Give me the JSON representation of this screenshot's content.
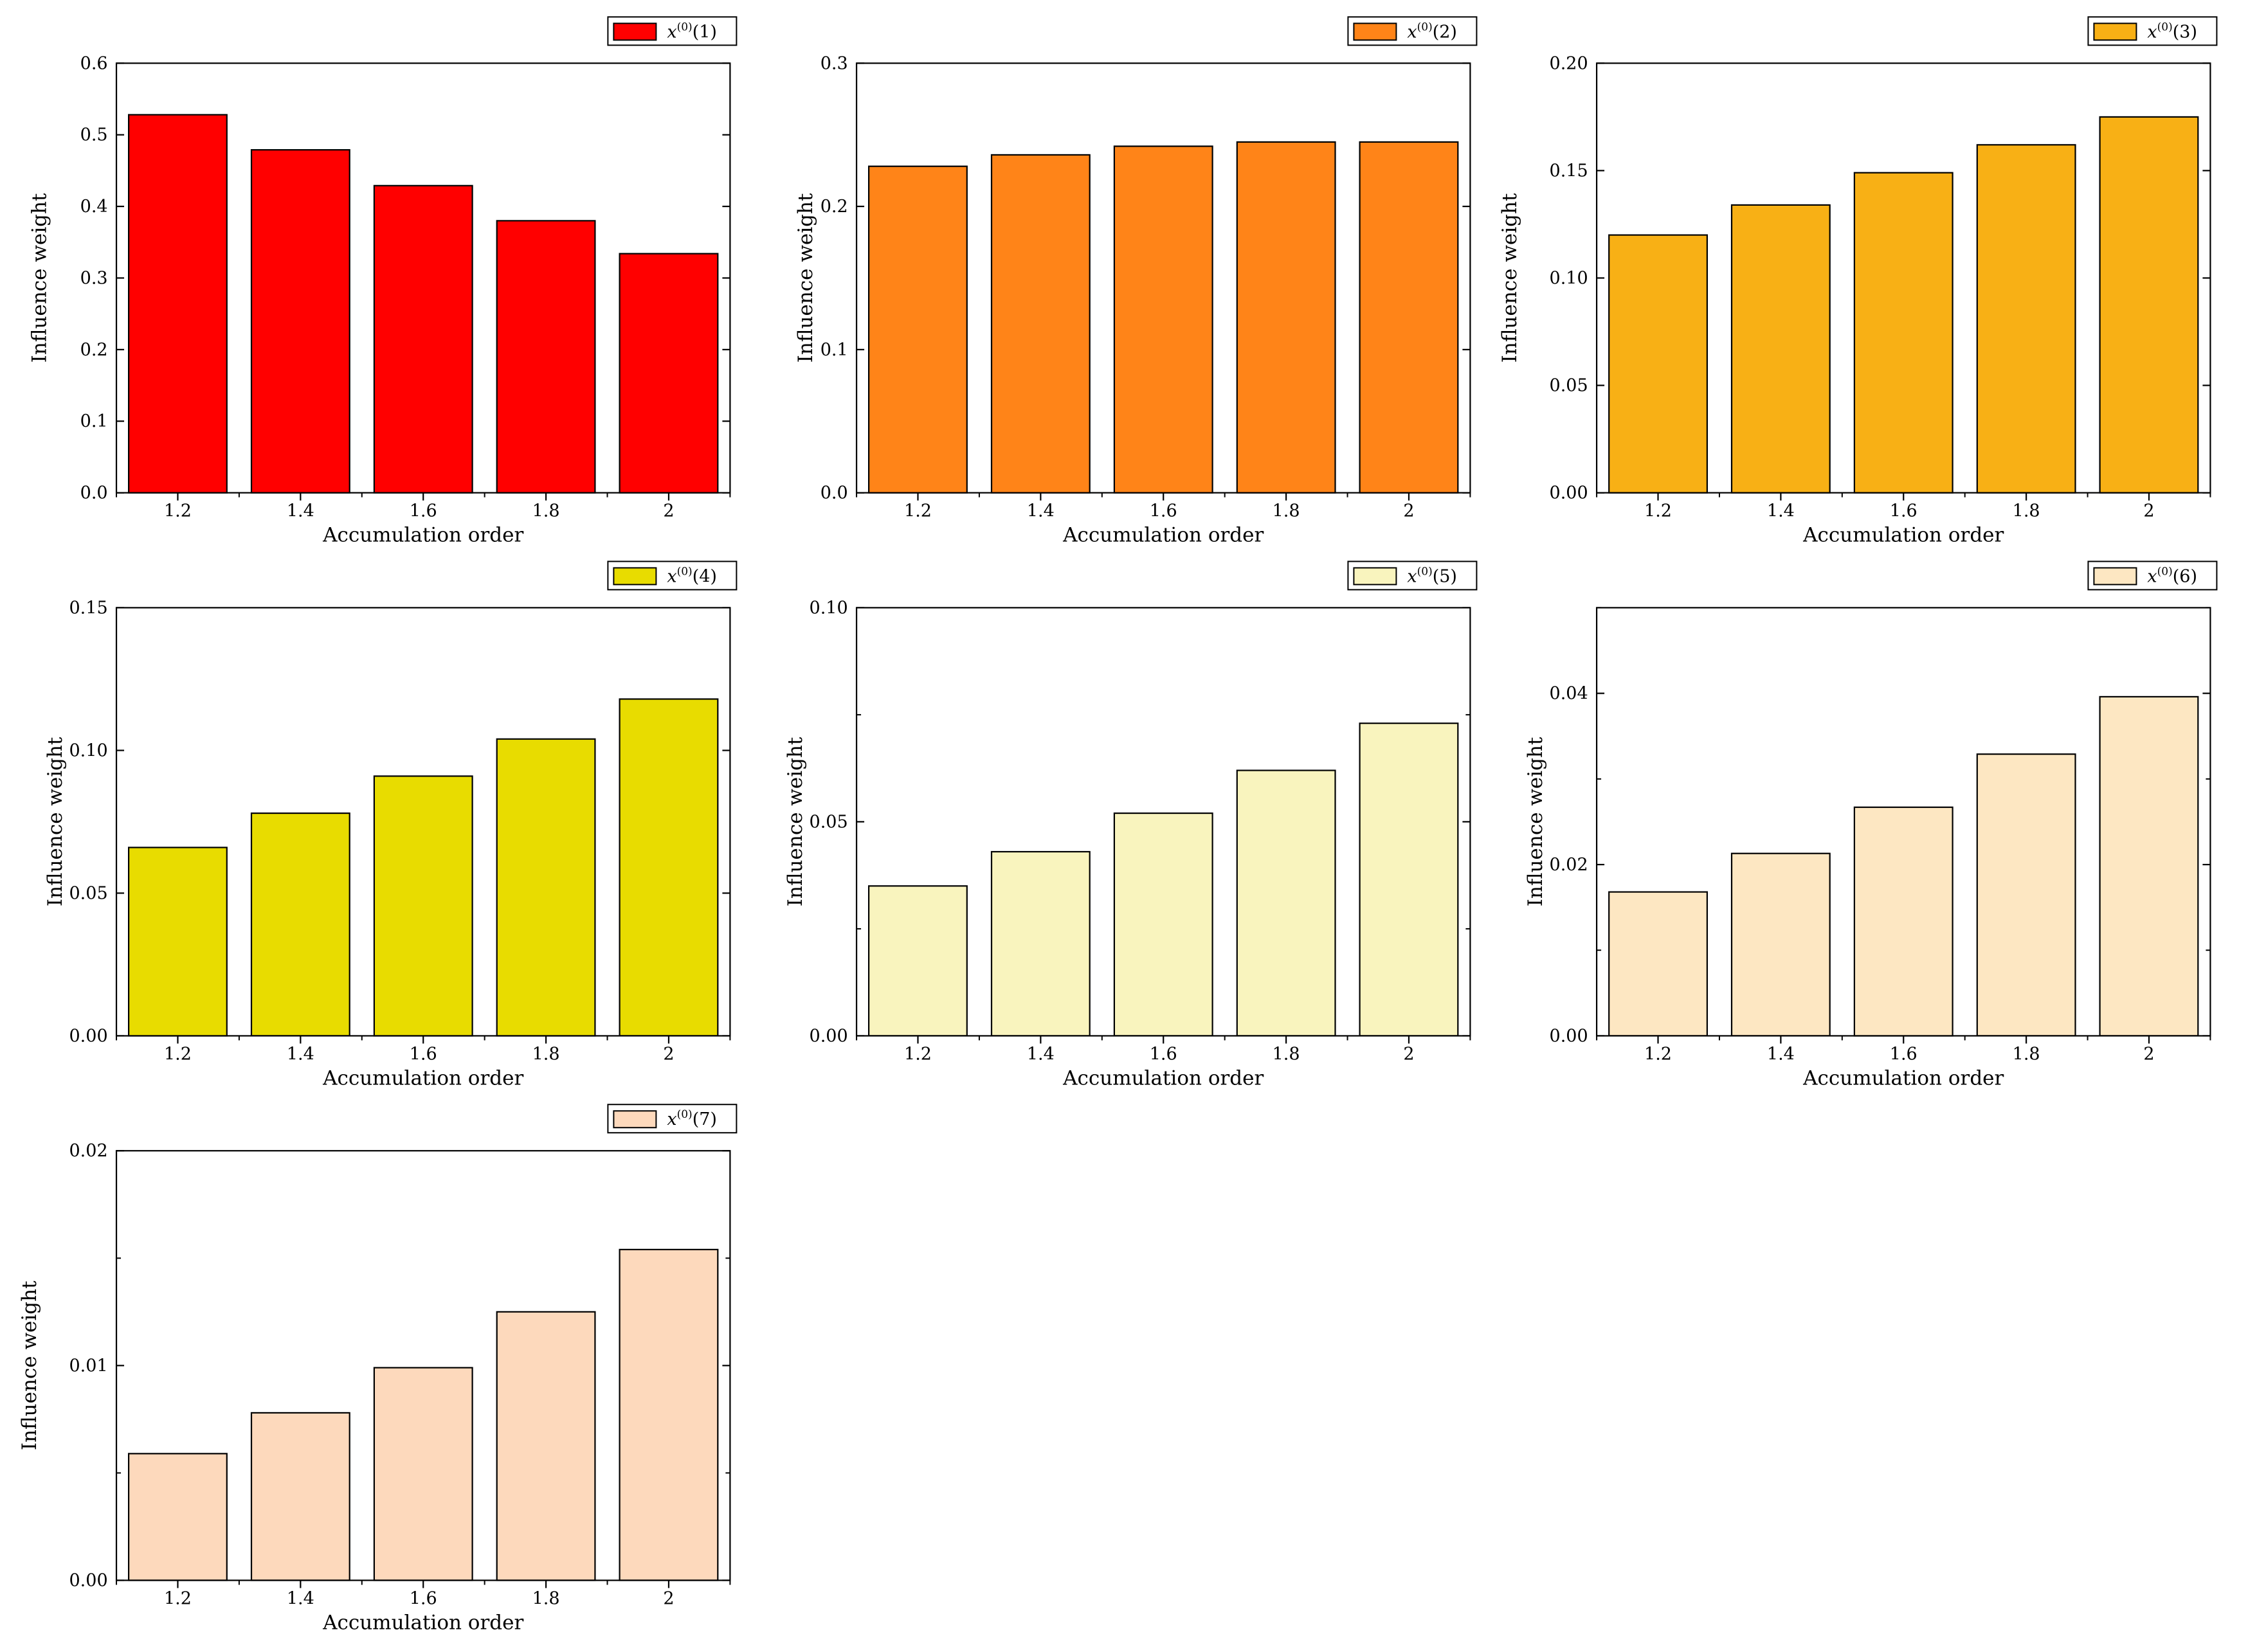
{
  "figure": {
    "x_categories": [
      "1.2",
      "1.4",
      "1.6",
      "1.8",
      "2"
    ]
  },
  "chart_data": [
    {
      "type": "bar",
      "legend": {
        "prefix": "x",
        "superscript": "(0)",
        "index": "(1)"
      },
      "color": "#FF0000",
      "categories": [
        "1.2",
        "1.4",
        "1.6",
        "1.8",
        "2"
      ],
      "values": [
        0.528,
        0.479,
        0.429,
        0.38,
        0.334
      ],
      "xlabel": "Accumulation order",
      "ylabel": "Influence weight",
      "ylim": [
        0,
        0.6
      ],
      "yticks": [
        0,
        0.1,
        0.2,
        0.3,
        0.4,
        0.5,
        0.6
      ],
      "ytick_labels": [
        "0.0",
        "0.1",
        "0.2",
        "0.3",
        "0.4",
        "0.5",
        "0.6"
      ]
    },
    {
      "type": "bar",
      "legend": {
        "prefix": "x",
        "superscript": "(0)",
        "index": "(2)"
      },
      "color": "#FF8418",
      "categories": [
        "1.2",
        "1.4",
        "1.6",
        "1.8",
        "2"
      ],
      "values": [
        0.228,
        0.236,
        0.242,
        0.245,
        0.245
      ],
      "xlabel": "Accumulation order",
      "ylabel": "Influence weight",
      "ylim": [
        0,
        0.3
      ],
      "yticks": [
        0,
        0.1,
        0.2,
        0.3
      ],
      "ytick_labels": [
        "0.0",
        "0.1",
        "0.2",
        "0.3"
      ]
    },
    {
      "type": "bar",
      "legend": {
        "prefix": "x",
        "superscript": "(0)",
        "index": "(3)"
      },
      "color": "#F8B015",
      "categories": [
        "1.2",
        "1.4",
        "1.6",
        "1.8",
        "2"
      ],
      "values": [
        0.12,
        0.134,
        0.149,
        0.162,
        0.175
      ],
      "xlabel": "Accumulation order",
      "ylabel": "Influence weight",
      "ylim": [
        0,
        0.2
      ],
      "yticks": [
        0,
        0.05,
        0.1,
        0.15,
        0.2
      ],
      "ytick_labels": [
        "0.00",
        "0.05",
        "0.10",
        "0.15",
        "0.20"
      ]
    },
    {
      "type": "bar",
      "legend": {
        "prefix": "x",
        "superscript": "(0)",
        "index": "(4)"
      },
      "color": "#E8DC00",
      "categories": [
        "1.2",
        "1.4",
        "1.6",
        "1.8",
        "2"
      ],
      "values": [
        0.066,
        0.078,
        0.091,
        0.104,
        0.118
      ],
      "xlabel": "Accumulation order",
      "ylabel": "Influence weight",
      "ylim": [
        0,
        0.15
      ],
      "yticks": [
        0,
        0.05,
        0.1,
        0.15
      ],
      "ytick_labels": [
        "0.00",
        "0.05",
        "0.10",
        "0.15"
      ]
    },
    {
      "type": "bar",
      "legend": {
        "prefix": "x",
        "superscript": "(0)",
        "index": "(5)"
      },
      "color": "#F9F4BE",
      "categories": [
        "1.2",
        "1.4",
        "1.6",
        "1.8",
        "2"
      ],
      "values": [
        0.035,
        0.043,
        0.052,
        0.062,
        0.073
      ],
      "xlabel": "Accumulation order",
      "ylabel": "Influence weight",
      "ylim": [
        0,
        0.1
      ],
      "yticks": [
        0,
        0.05,
        0.1
      ],
      "ytick_labels": [
        "0.00",
        "0.05",
        "0.10"
      ],
      "minor_yticks": [
        0.025,
        0.075
      ]
    },
    {
      "type": "bar",
      "legend": {
        "prefix": "x",
        "superscript": "(0)",
        "index": "(6)"
      },
      "color": "#FDE7C2",
      "categories": [
        "1.2",
        "1.4",
        "1.6",
        "1.8",
        "2"
      ],
      "values": [
        0.0168,
        0.0213,
        0.0267,
        0.0329,
        0.0396
      ],
      "xlabel": "Accumulation order",
      "ylabel": "Influence weight",
      "ylim": [
        0,
        0.05
      ],
      "yticks": [
        0,
        0.02,
        0.04
      ],
      "ytick_labels": [
        "0.00",
        "0.02",
        "0.04"
      ],
      "minor_yticks": [
        0.01,
        0.03,
        0.05
      ]
    },
    {
      "type": "bar",
      "legend": {
        "prefix": "x",
        "superscript": "(0)",
        "index": "(7)"
      },
      "color": "#FDD9BC",
      "categories": [
        "1.2",
        "1.4",
        "1.6",
        "1.8",
        "2"
      ],
      "values": [
        0.0059,
        0.0078,
        0.0099,
        0.0125,
        0.0154
      ],
      "xlabel": "Accumulation order",
      "ylabel": "Influence weight",
      "ylim": [
        0,
        0.02
      ],
      "yticks": [
        0,
        0.01,
        0.02
      ],
      "ytick_labels": [
        "0.00",
        "0.01",
        "0.02"
      ],
      "minor_yticks": [
        0.005,
        0.015
      ]
    }
  ]
}
